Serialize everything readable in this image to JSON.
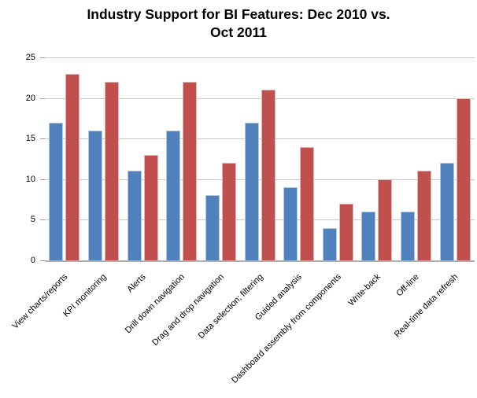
{
  "title": {
    "line1": "Industry Support for BI Features: Dec 2010 vs.",
    "line2": "Oct 2011"
  },
  "chart_data": {
    "type": "bar",
    "title": "Industry Support for BI Features: Dec 2010 vs. Oct 2011",
    "categories": [
      "View charts/reports",
      "KPI monitoring",
      "Alerts",
      "Drill down navigation",
      "Drag and drop navigation",
      "Data selection; filtering",
      "Guided analysis",
      "Dashboard assembly from components",
      "Write-back",
      "Off-line",
      "Real-time data refresh"
    ],
    "series": [
      {
        "name": "Dec 2010",
        "color": "#4F81BD",
        "border_color": "#B6C9E2",
        "values": [
          17,
          16,
          11,
          16,
          8,
          17,
          9,
          4,
          6,
          6,
          12
        ]
      },
      {
        "name": "Oct 2011",
        "color": "#C0504D",
        "border_color": "#E3B7B6",
        "values": [
          23,
          22,
          13,
          22,
          12,
          21,
          14,
          7,
          10,
          11,
          20
        ]
      }
    ],
    "xlabel": "",
    "ylabel": "",
    "ylim": [
      0,
      25
    ],
    "yticks": [
      0,
      5,
      10,
      15,
      20,
      25
    ],
    "grid": true,
    "legend_position": "none",
    "x_tick_rotation_deg": 45
  },
  "colors": {
    "background": "#FFFFFF",
    "gridline": "#C9C9C9",
    "axis_line": "#B0B0B0",
    "text": "#000000"
  }
}
